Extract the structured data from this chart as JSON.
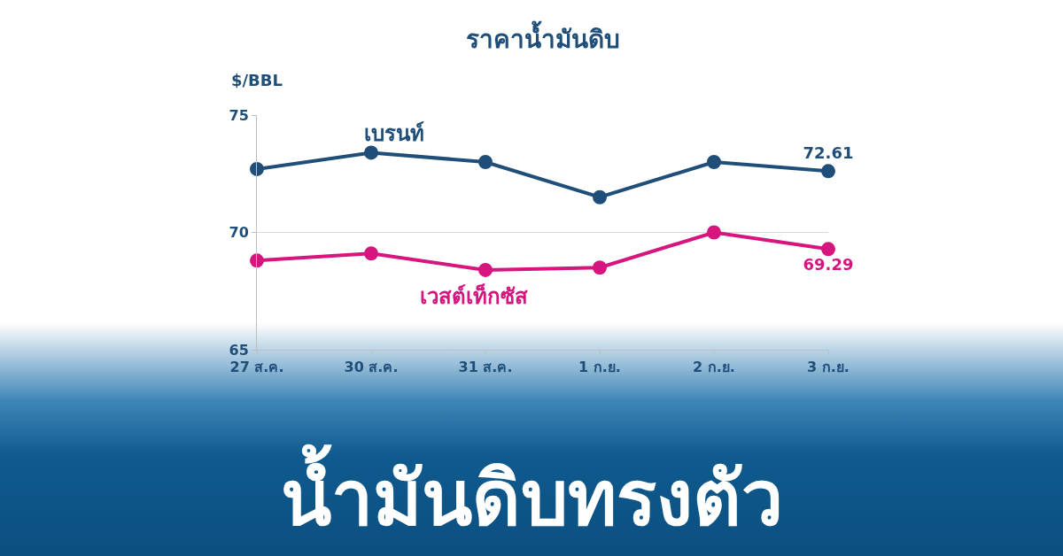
{
  "chart_data": {
    "type": "line",
    "title": "ราคาน้ำมันดิบ",
    "ylabel": "$/BBL",
    "categories": [
      "27 ส.ค.",
      "30 ส.ค.",
      "31 ส.ค.",
      "1 ก.ย.",
      "2 ก.ย.",
      "3 ก.ย."
    ],
    "series": [
      {
        "name": "เบรนท์",
        "color": "#1f4e79",
        "values": [
          72.7,
          73.4,
          73.0,
          71.5,
          73.0,
          72.61
        ],
        "value_labels": [
          null,
          null,
          null,
          null,
          null,
          "72.61"
        ]
      },
      {
        "name": "เวสต์เท็กซัส",
        "color": "#d6157f",
        "values": [
          68.8,
          69.1,
          68.4,
          68.5,
          70.0,
          69.29
        ],
        "value_labels": [
          null,
          null,
          null,
          null,
          null,
          "69.29"
        ]
      }
    ],
    "ylim": [
      65,
      75
    ],
    "yticks": [
      65,
      70,
      75
    ],
    "grid": "y",
    "marker": "circle",
    "line_style": "solid",
    "annotations": [
      "น้ำมันดิบทรงตัว"
    ]
  }
}
